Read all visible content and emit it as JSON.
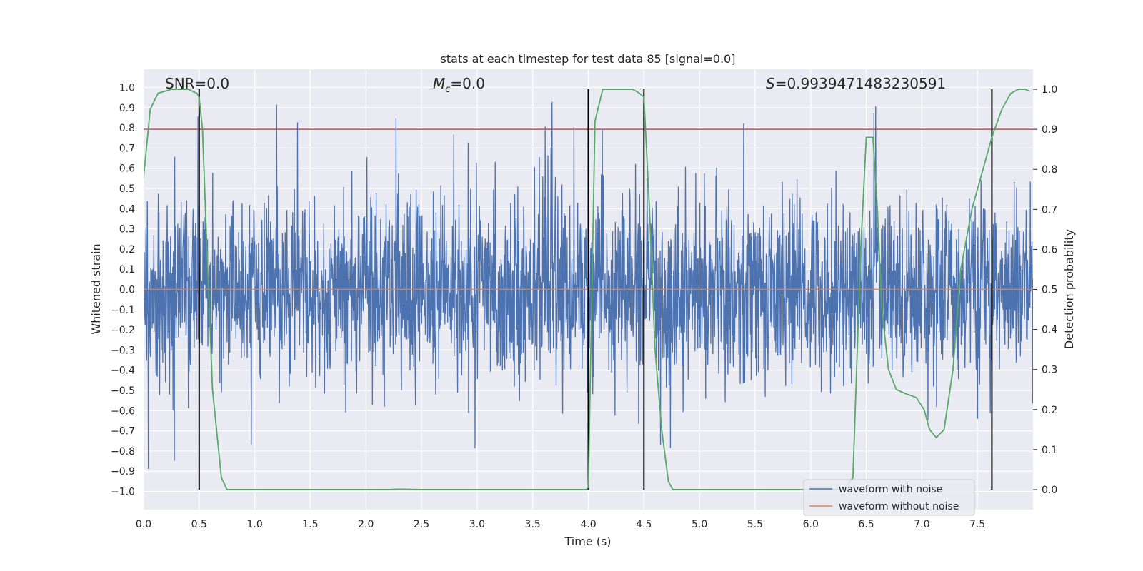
{
  "chart_data": {
    "type": "line",
    "title": "stats at each timestep for test data 85 [signal=0.0]",
    "xlabel": "Time (s)",
    "ylabel": "Whitened strain",
    "y2label": "Detection probability",
    "xlim": [
      0.0,
      8.0
    ],
    "ylim": [
      -1.09,
      1.09
    ],
    "y2lim": [
      -0.05,
      1.05
    ],
    "x_ticks": [
      "0.0",
      "0.5",
      "1.0",
      "1.5",
      "2.0",
      "2.5",
      "3.0",
      "3.5",
      "4.0",
      "4.5",
      "5.0",
      "5.5",
      "6.0",
      "6.5",
      "7.0",
      "7.5"
    ],
    "y_ticks": [
      "1.0",
      "0.9",
      "0.8",
      "0.7",
      "0.6",
      "0.5",
      "0.4",
      "0.3",
      "0.2",
      "0.1",
      "0.0",
      "−0.1",
      "−0.2",
      "−0.3",
      "−0.4",
      "−0.5",
      "−0.6",
      "−0.7",
      "−0.8",
      "−0.9",
      "−1.0"
    ],
    "y2_ticks": [
      "1.0",
      "0.9",
      "0.8",
      "0.7",
      "0.6",
      "0.5",
      "0.4",
      "0.3",
      "0.2",
      "0.1",
      "0.0"
    ],
    "grid": true,
    "legend": {
      "placement": "lower-right",
      "entries": [
        "waveform with noise",
        "waveform without noise"
      ]
    },
    "annotations": {
      "snr": "SNR=0.0",
      "mc_symbol": "M",
      "mc_sub": "c",
      "mc_value": "=0.0",
      "s_symbol": "S",
      "s_value": "=0.9939471483230591"
    },
    "threshold_y2": 0.9,
    "vertical_markers_x": [
      0.5,
      4.0,
      4.5,
      7.63
    ],
    "series": [
      {
        "name": "waveform with noise",
        "color": "#4c72b0",
        "axis": "left",
        "noise_amplitude_typical": 0.4,
        "noise_amplitude_peak": 0.97
      },
      {
        "name": "waveform without noise",
        "color": "#dd8452",
        "axis": "left",
        "x": [
          0.0,
          8.0
        ],
        "y": [
          0.0,
          0.0
        ]
      },
      {
        "name": "detection probability",
        "color": "#55a868",
        "axis": "right",
        "x": [
          0.0,
          0.06,
          0.13,
          0.25,
          0.4,
          0.48,
          0.5,
          0.53,
          0.57,
          0.62,
          0.7,
          0.75,
          0.9,
          1.5,
          2.0,
          2.2,
          2.3,
          2.5,
          3.0,
          3.5,
          3.8,
          3.98,
          4.0,
          4.06,
          4.13,
          4.4,
          4.46,
          4.5,
          4.55,
          4.6,
          4.66,
          4.72,
          4.76,
          5.0,
          6.0,
          6.3,
          6.38,
          6.45,
          6.5,
          6.56,
          6.6,
          6.64,
          6.7,
          6.77,
          6.85,
          6.95,
          7.02,
          7.07,
          7.13,
          7.2,
          7.28,
          7.35,
          7.45,
          7.55,
          7.63,
          7.72,
          7.8,
          7.87,
          7.93,
          7.97
        ],
        "y": [
          0.78,
          0.95,
          0.99,
          1.0,
          1.0,
          0.99,
          0.98,
          0.9,
          0.6,
          0.25,
          0.03,
          0.0,
          0.0,
          0.0,
          0.0,
          0.0,
          0.001,
          0.0,
          0.0,
          0.0,
          0.0,
          0.0,
          0.005,
          0.92,
          1.0,
          1.0,
          0.99,
          0.98,
          0.7,
          0.35,
          0.15,
          0.02,
          0.0,
          0.0,
          0.0,
          0.0,
          0.03,
          0.6,
          0.88,
          0.88,
          0.7,
          0.45,
          0.3,
          0.25,
          0.24,
          0.23,
          0.2,
          0.15,
          0.13,
          0.15,
          0.3,
          0.55,
          0.7,
          0.8,
          0.88,
          0.95,
          0.99,
          1.0,
          1.0,
          0.995
        ]
      }
    ],
    "colors": {
      "plot_bg": "#eaeaf2",
      "grid": "#ffffff",
      "noise": "#4c72b0",
      "clean": "#dd8452",
      "prob": "#55a868",
      "threshold": "#c44e52",
      "marker": "#000000"
    }
  }
}
